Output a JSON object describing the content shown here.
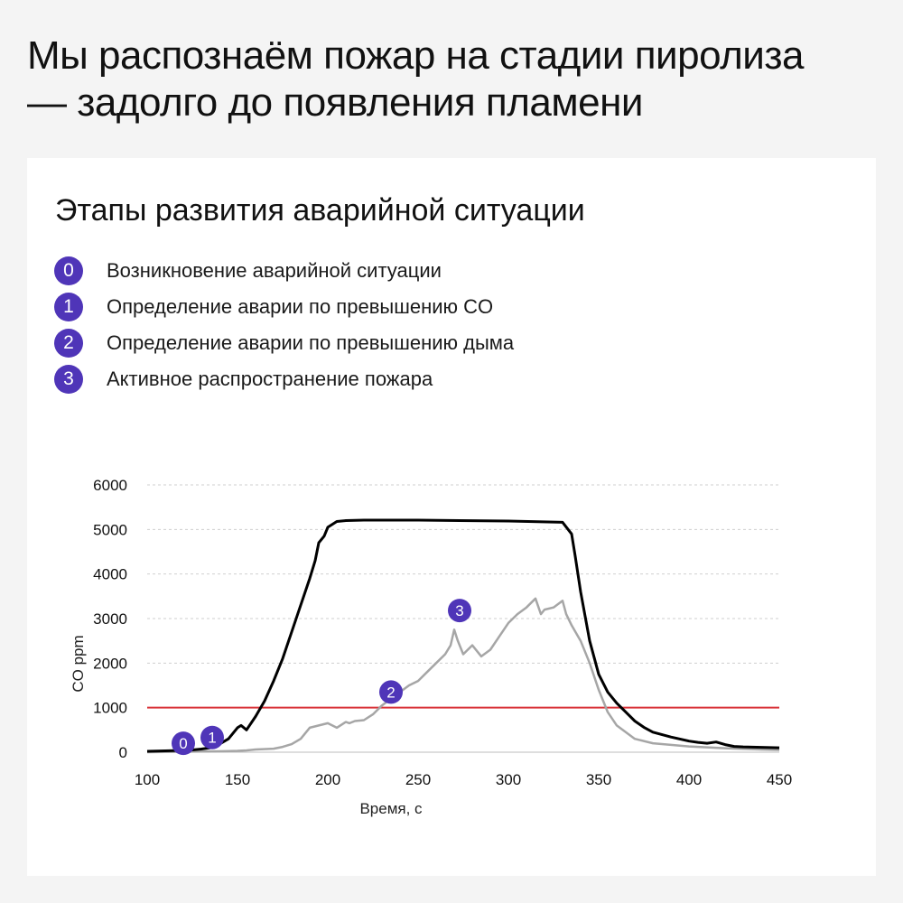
{
  "headline": {
    "line1": "Мы распознаём пожар на стадии пиролиза",
    "line2": "— задолго до появления пламени"
  },
  "card": {
    "title": "Этапы развития аварийной ситуации",
    "legend": [
      {
        "num": "0",
        "text": "Возникновение аварийной ситуации"
      },
      {
        "num": "1",
        "text": "Определение аварии по превышению CO"
      },
      {
        "num": "2",
        "text": "Определение аварии по превышению дыма"
      },
      {
        "num": "3",
        "text": "Активное распространение пожара"
      }
    ]
  },
  "colors": {
    "accent": "#4f35b8",
    "threshold": "#d9343a",
    "co_series": "#000000",
    "smoke_series": "#a6a6a6",
    "grid": "#cfcfcf"
  },
  "chart_data": {
    "type": "line",
    "title": "",
    "xlabel": "Время, с",
    "ylabel": "CO ppm",
    "xlim": [
      100,
      450
    ],
    "ylim": [
      0,
      6000
    ],
    "xticks": [
      "100",
      "150",
      "200",
      "250",
      "300",
      "350",
      "400",
      "450"
    ],
    "yticks": [
      "0",
      "1000",
      "2000",
      "3000",
      "4000",
      "5000",
      "6000"
    ],
    "grid": "horizontal dashed",
    "threshold": {
      "y": 1000
    },
    "series": [
      {
        "x": [
          100,
          110,
          120,
          125,
          130,
          135,
          140,
          145,
          150,
          152,
          155,
          160,
          165,
          170,
          175,
          180,
          185,
          190,
          193,
          195,
          198,
          200,
          205,
          210,
          220,
          250,
          300,
          330,
          335,
          337,
          340,
          345,
          350,
          355,
          360,
          365,
          370,
          375,
          380,
          390,
          400,
          405,
          410,
          415,
          420,
          425,
          430,
          440,
          450
        ],
        "y": [
          20,
          30,
          40,
          50,
          70,
          100,
          180,
          300,
          550,
          600,
          500,
          800,
          1150,
          1600,
          2100,
          2700,
          3300,
          3900,
          4300,
          4700,
          4850,
          5050,
          5180,
          5200,
          5210,
          5210,
          5190,
          5160,
          4900,
          4400,
          3600,
          2500,
          1750,
          1350,
          1100,
          900,
          700,
          560,
          450,
          340,
          250,
          220,
          200,
          230,
          170,
          130,
          120,
          110,
          100
        ]
      },
      {
        "x": [
          100,
          120,
          140,
          150,
          155,
          160,
          170,
          175,
          180,
          185,
          190,
          195,
          200,
          205,
          210,
          212,
          215,
          220,
          225,
          230,
          235,
          240,
          245,
          250,
          255,
          260,
          265,
          268,
          270,
          272,
          275,
          280,
          285,
          290,
          295,
          300,
          305,
          310,
          315,
          318,
          320,
          325,
          330,
          332,
          335,
          340,
          345,
          350,
          355,
          360,
          370,
          380,
          400,
          420,
          440,
          450
        ],
        "y": [
          0,
          10,
          20,
          30,
          40,
          60,
          80,
          120,
          180,
          300,
          550,
          600,
          650,
          550,
          680,
          650,
          700,
          720,
          850,
          1050,
          1200,
          1350,
          1500,
          1600,
          1800,
          2000,
          2200,
          2400,
          2750,
          2500,
          2200,
          2400,
          2150,
          2300,
          2600,
          2900,
          3100,
          3250,
          3450,
          3100,
          3200,
          3250,
          3400,
          3100,
          2850,
          2500,
          2000,
          1400,
          900,
          600,
          300,
          200,
          130,
          90,
          60,
          50
        ]
      }
    ],
    "markers": [
      {
        "label": "0",
        "x": 120,
        "y": 200
      },
      {
        "label": "1",
        "x": 136,
        "y": 330
      },
      {
        "label": "2",
        "x": 235,
        "y": 1350
      },
      {
        "label": "3",
        "x": 273,
        "y": 3180
      }
    ]
  }
}
